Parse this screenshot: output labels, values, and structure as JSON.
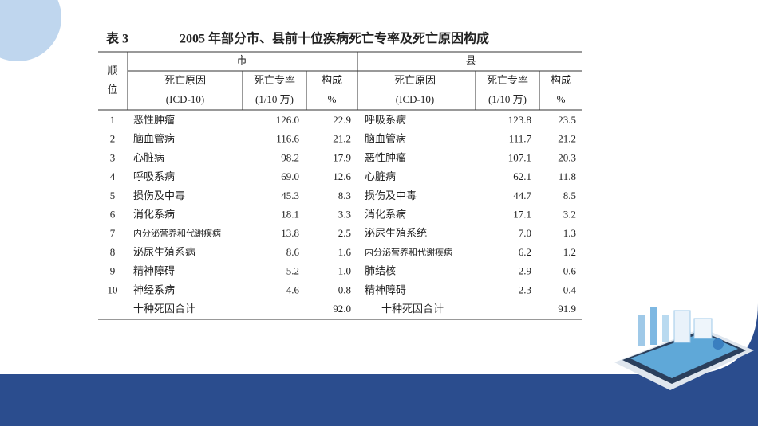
{
  "header": {
    "table_label": "表 3",
    "title": "2005 年部分市、县前十位疾病死亡专率及死亡原因构成"
  },
  "table": {
    "rank_header": [
      "顺",
      "位"
    ],
    "groups": [
      "市",
      "县"
    ],
    "columns": [
      [
        "死亡原因",
        "(ICD-10)"
      ],
      [
        "死亡专率",
        "(1/10 万)"
      ],
      [
        "构成",
        "%"
      ],
      [
        "死亡原因",
        "(ICD-10)"
      ],
      [
        "死亡专率",
        "(1/10 万)"
      ],
      [
        "构成",
        "%"
      ]
    ],
    "rows": [
      [
        "1",
        "恶性肿瘤",
        "126.0",
        "22.9",
        "呼吸系病",
        "123.8",
        "23.5"
      ],
      [
        "2",
        "脑血管病",
        "116.6",
        "21.2",
        "脑血管病",
        "111.7",
        "21.2"
      ],
      [
        "3",
        "心脏病",
        "98.2",
        "17.9",
        "恶性肿瘤",
        "107.1",
        "20.3"
      ],
      [
        "4",
        "呼吸系病",
        "69.0",
        "12.6",
        "心脏病",
        "62.1",
        "11.8"
      ],
      [
        "5",
        "损伤及中毒",
        "45.3",
        "8.3",
        "损伤及中毒",
        "44.7",
        "8.5"
      ],
      [
        "6",
        "消化系病",
        "18.1",
        "3.3",
        "消化系病",
        "17.1",
        "3.2"
      ],
      [
        "7",
        "内分泌营养和代谢疾病",
        "13.8",
        "2.5",
        "泌尿生殖系统",
        "7.0",
        "1.3"
      ],
      [
        "8",
        "泌尿生殖系病",
        "8.6",
        "1.6",
        "内分泌营养和代谢疾病",
        "6.2",
        "1.2"
      ],
      [
        "9",
        "精神障碍",
        "5.2",
        "1.0",
        "肺结核",
        "2.9",
        "0.6"
      ],
      [
        "10",
        "神经系病",
        "4.6",
        "0.8",
        "精神障碍",
        "2.3",
        "0.4"
      ]
    ],
    "total": [
      "十种死因合计",
      "92.0",
      "十种死因合计",
      "91.9"
    ]
  }
}
